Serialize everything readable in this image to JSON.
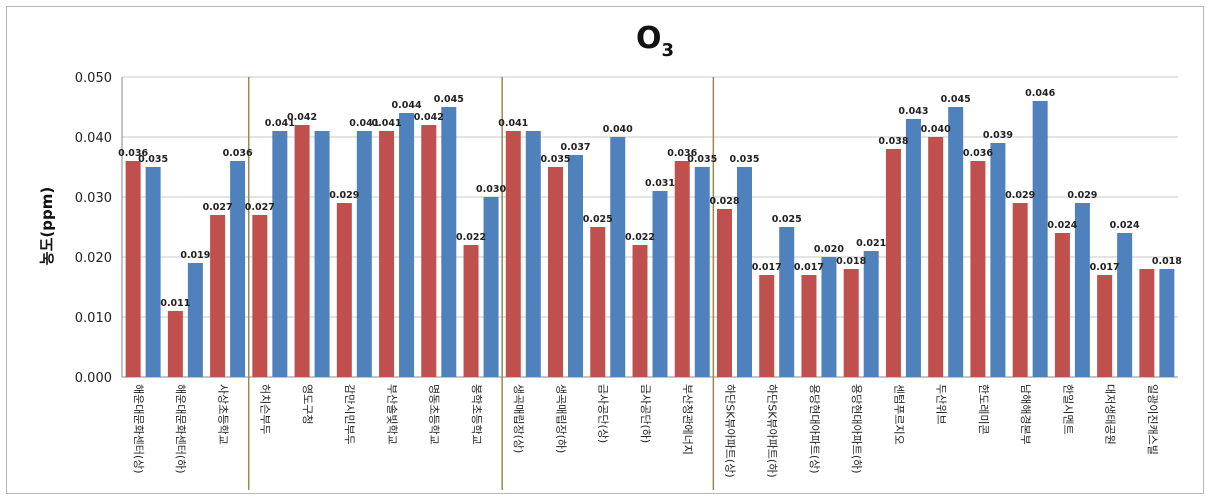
{
  "chart_data": {
    "type": "bar",
    "title": "O",
    "title_subscript": "3",
    "ylabel": "농도(ppm)",
    "xlabel": "",
    "ylim": [
      0,
      0.05
    ],
    "yticks": [
      "0.000",
      "0.010",
      "0.020",
      "0.030",
      "0.040",
      "0.050"
    ],
    "grid": true,
    "legend": "none",
    "colors": {
      "red": "#c0504d",
      "blue": "#4f81bd",
      "separator": "#9c8a4a"
    },
    "categories": [
      "해운대문화센터(상)",
      "해운대문화센터(하)",
      "사상초등학교",
      "허치슨부두",
      "영도구청",
      "감만시민부두",
      "부산솔빛학교",
      "명동초등학교",
      "봉학초등학교",
      "생곡매립장(상)",
      "생곡매립장(하)",
      "금사공단(상)",
      "금사공단(하)",
      "부산청관에너지",
      "하단SK뷰아파트(상)",
      "하단SK뷰아파트(하)",
      "용당현대아파트(상)",
      "용당현대아파트(하)",
      "센텀푸르지오",
      "두산위브",
      "한도레미콘",
      "남해해경본부",
      "한일시멘트",
      "대저생태공원",
      "일광이진캐스빌"
    ],
    "series": [
      {
        "values": [
          0.036,
          0.011,
          0.027,
          0.027,
          0.042,
          0.029,
          0.041,
          0.042,
          0.022,
          0.041,
          0.035,
          0.025,
          0.022,
          0.036,
          0.028,
          0.017,
          0.017,
          0.018,
          0.038,
          0.04,
          0.036,
          0.029,
          0.024,
          0.017,
          0.018
        ]
      },
      {
        "values": [
          0.035,
          0.019,
          0.036,
          0.041,
          0.041,
          0.041,
          0.044,
          0.045,
          0.03,
          0.041,
          0.037,
          0.04,
          0.031,
          0.035,
          0.035,
          0.025,
          0.02,
          0.021,
          0.043,
          0.045,
          0.039,
          0.046,
          0.029,
          0.024,
          0.018
        ]
      }
    ],
    "data_labels": [
      [
        "0.036",
        "0.011",
        "0.027",
        "0.027",
        "0.042",
        "0.029",
        "0.041",
        "0.042",
        "0.022",
        "0.041",
        "0.035",
        "0.025",
        "0.022",
        "0.036",
        "0.028",
        "0.017",
        "0.017",
        "0.018",
        "0.038",
        "0.040",
        "0.036",
        "0.029",
        "0.024",
        "0.017",
        ""
      ],
      [
        "0.035",
        "0.019",
        "0.036",
        "0.041",
        "",
        "0.041",
        "0.044",
        "0.045",
        "0.030",
        "",
        "0.037",
        "0.040",
        "0.031",
        "0.035",
        "0.035",
        "0.025",
        "0.020",
        "0.021",
        "0.043",
        "0.045",
        "0.039",
        "0.046",
        "0.029",
        "0.024",
        "0.018"
      ]
    ],
    "group_separators_after_index": [
      2,
      8,
      13
    ]
  }
}
